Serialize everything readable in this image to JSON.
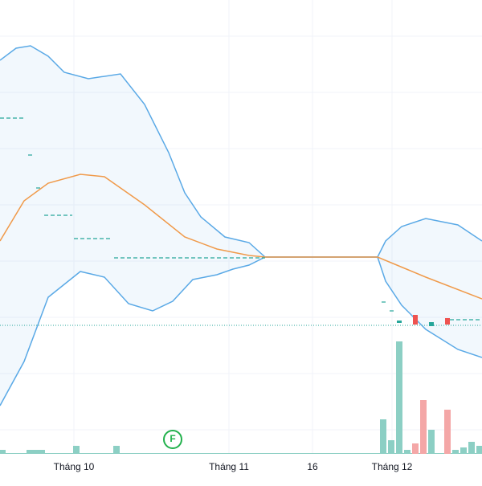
{
  "chart_data": {
    "type": "candlestick",
    "xlim": [
      0,
      600
    ],
    "ylim": [
      0,
      600
    ],
    "xticks": [
      {
        "value": 92,
        "label": "Tháng 10"
      },
      {
        "value": 285,
        "label": "Tháng 11"
      },
      {
        "value": 389,
        "label": "16"
      },
      {
        "value": 488,
        "label": "Tháng 12"
      }
    ],
    "bands": {
      "upper": {
        "color": "#5aa9e6",
        "x": [
          0,
          20,
          38,
          60,
          80,
          110,
          150,
          180,
          210,
          230,
          250,
          280,
          310,
          330,
          470,
          480,
          500,
          530,
          570,
          600
        ],
        "values": [
          525,
          540,
          543,
          530,
          510,
          502,
          508,
          470,
          410,
          360,
          330,
          305,
          298,
          280,
          280,
          300,
          318,
          328,
          320,
          300
        ]
      },
      "middle": {
        "color": "#f09a4a",
        "x": [
          0,
          30,
          60,
          100,
          130,
          180,
          230,
          270,
          310,
          330,
          470,
          530,
          600
        ],
        "values": [
          300,
          350,
          372,
          383,
          380,
          345,
          305,
          290,
          282,
          280,
          280,
          255,
          228
        ]
      },
      "lower": {
        "color": "#5aa9e6",
        "x": [
          0,
          30,
          60,
          100,
          130,
          160,
          190,
          215,
          240,
          270,
          290,
          310,
          330,
          470,
          480,
          500,
          530,
          570,
          600
        ],
        "values": [
          95,
          150,
          230,
          262,
          255,
          222,
          213,
          225,
          252,
          258,
          265,
          270,
          280,
          280,
          250,
          220,
          190,
          165,
          155
        ]
      }
    },
    "candles": {
      "x": [
        497,
        517,
        537,
        557
      ],
      "open": [
        198,
        208,
        194,
        204
      ],
      "close": [
        201,
        196,
        199,
        196
      ],
      "up_color": "#26a69a",
      "down_color": "#ef5350"
    },
    "levels": {
      "color": "#26a69a",
      "x_start": [
        0,
        35,
        45,
        55,
        92,
        142,
        475,
        485,
        560
      ],
      "x_end": [
        30,
        40,
        50,
        90,
        140,
        330,
        480,
        490,
        600
      ],
      "values": [
        453,
        407,
        366,
        332,
        303,
        279,
        224,
        213,
        202
      ]
    },
    "price_line": 195,
    "volume": {
      "ylim": [
        0,
        565
      ],
      "up_color": "#8ccfc4",
      "down_color": "#f4a7a7",
      "x": [
        3,
        37,
        44,
        52,
        95,
        145,
        477,
        487,
        497,
        507,
        517,
        527,
        537,
        557,
        567,
        577,
        587,
        597
      ],
      "values": [
        5,
        5,
        5,
        5,
        10,
        10,
        43,
        17,
        140,
        5,
        13,
        67,
        30,
        55,
        5,
        8,
        15,
        10
      ],
      "up": [
        true,
        true,
        true,
        true,
        true,
        true,
        true,
        true,
        true,
        true,
        false,
        false,
        true,
        false,
        true,
        true,
        true,
        true
      ]
    },
    "marker": {
      "label": "F",
      "x": 215,
      "color": "#22b14c"
    }
  }
}
